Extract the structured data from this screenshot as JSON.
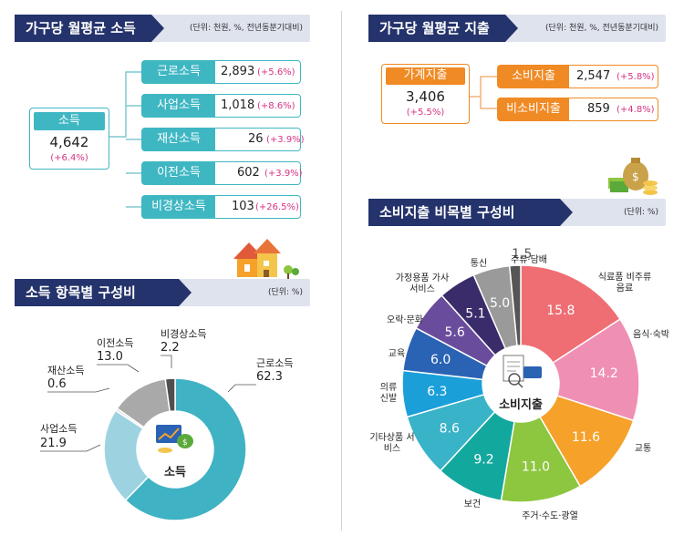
{
  "income": {
    "title": "가구당 월평균 소득",
    "unit": "(단위: 천원, %, 전년동분기대비)",
    "total": {
      "label": "소득",
      "value": "4,642",
      "change": "(+6.4%)"
    },
    "items": [
      {
        "label": "근로소득",
        "value": "2,893",
        "change": "(+5.6%)"
      },
      {
        "label": "사업소득",
        "value": "1,018",
        "change": "(+8.6%)"
      },
      {
        "label": "재산소득",
        "value": "26",
        "change": "(+3.9%)"
      },
      {
        "label": "이전소득",
        "value": "602",
        "change": "(+3.9%)"
      },
      {
        "label": "비경상소득",
        "value": "103",
        "change": "(+26.5%)"
      }
    ]
  },
  "expenditure": {
    "title": "가구당 월평균 지출",
    "unit": "(단위: 천원, %, 전년동분기대비)",
    "total": {
      "label": "가계지출",
      "value": "3,406",
      "change": "(+5.5%)"
    },
    "items": [
      {
        "label": "소비지출",
        "value": "2,547",
        "change": "(+5.8%)"
      },
      {
        "label": "비소비지출",
        "value": "859",
        "change": "(+4.8%)"
      }
    ]
  },
  "income_composition": {
    "title": "소득 항목별 구성비",
    "unit": "(단위: %)",
    "center": "소득"
  },
  "consumption_composition": {
    "title": "소비지출 비목별 구성비",
    "unit": "(단위: %)",
    "center": "소비지출"
  },
  "colors": {
    "navy": "#24336b",
    "teal": "#3fb7c3",
    "orange": "#f08a24",
    "pink": "#d63384"
  },
  "chart_data": [
    {
      "type": "pie",
      "title": "소득 항목별 구성비",
      "categories": [
        "근로소득",
        "사업소득",
        "재산소득",
        "이전소득",
        "비경상소득"
      ],
      "values": [
        62.3,
        21.9,
        0.6,
        13.0,
        2.2
      ],
      "display": [
        "62.3",
        "21.9",
        "0.6",
        "13.0",
        "2.2"
      ],
      "colors": [
        "#3fb2c3",
        "#9dd3e1",
        "#e0e0e0",
        "#a9a9a9",
        "#4f4f4f"
      ]
    },
    {
      "type": "pie",
      "title": "소비지출 비목별 구성비",
      "categories": [
        "식료품 비주류음료",
        "음식·숙박",
        "교통",
        "주거·수도·광열",
        "보건",
        "기타상품 서비스",
        "의류 신발",
        "교육",
        "오락·문화",
        "가정용품 가사서비스",
        "통신",
        "주류·담배"
      ],
      "values": [
        15.8,
        14.2,
        11.6,
        11.0,
        9.2,
        8.6,
        6.3,
        6.0,
        5.6,
        5.1,
        5.0,
        1.5
      ],
      "display": [
        "15.8",
        "14.2",
        "11.6",
        "11.0",
        "9.2",
        "8.6",
        "6.3",
        "6.0",
        "5.6",
        "5.1",
        "5.0",
        "1.5"
      ],
      "colors": [
        "#ee6e73",
        "#ef8fb4",
        "#f6a12a",
        "#8dc63f",
        "#13a89e",
        "#39b3c7",
        "#1a9fd9",
        "#2a63b4",
        "#6a4c9c",
        "#3a2c6b",
        "#9a9a9a",
        "#555555"
      ]
    }
  ]
}
